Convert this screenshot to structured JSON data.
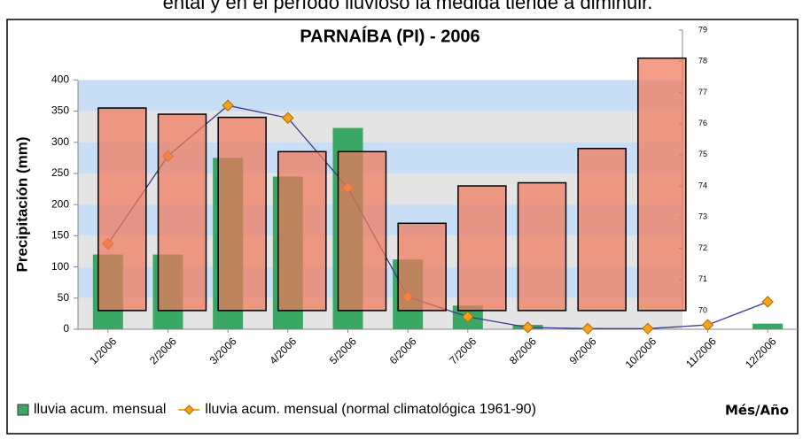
{
  "caption": "ental y en el período lluvioso la medida tiende a diminuir.",
  "chart_data": {
    "type": "bar",
    "title": "PARNAÍBA (PI) - 2006",
    "y_label": "Precipitación (mm)",
    "x_label": "Més/Año",
    "categories": [
      "1/2006",
      "2/2006",
      "3/2006",
      "4/2006",
      "5/2006",
      "6/2006",
      "7/2006",
      "8/2006",
      "9/2006",
      "10/2006",
      "11/2006",
      "12/2006"
    ],
    "ylim": [
      0,
      480
    ],
    "yticks": [
      0,
      50,
      100,
      150,
      200,
      250,
      300,
      350,
      400
    ],
    "y2lim": [
      69.4,
      79
    ],
    "y2ticks": [
      70,
      71,
      72,
      73,
      74,
      75,
      76,
      77,
      78,
      79
    ],
    "band_colors": [
      "#c8ddf6",
      "#e4e4e4"
    ],
    "legend": "bottom",
    "series": [
      {
        "name": "lluvia acum. mensual",
        "type": "bar",
        "color": "#3aa864",
        "values": [
          120,
          120,
          275,
          245,
          323,
          112,
          38,
          7,
          2,
          0,
          0,
          9
        ]
      },
      {
        "name": "lluvia acum. mensual (normal climatológica 1961-90)",
        "type": "line",
        "color": "#f5a21e",
        "line_color": "#3b3b8f",
        "values": [
          137,
          278,
          359,
          339,
          227,
          52,
          20,
          3,
          1,
          1,
          7,
          44
        ]
      },
      {
        "type": "bar",
        "axis": "y2",
        "color": "#f0775a",
        "values": [
          76.5,
          76.3,
          76.2,
          75.1,
          75.1,
          72.8,
          74.0,
          74.1,
          75.2,
          78.1,
          null,
          null
        ]
      }
    ]
  }
}
